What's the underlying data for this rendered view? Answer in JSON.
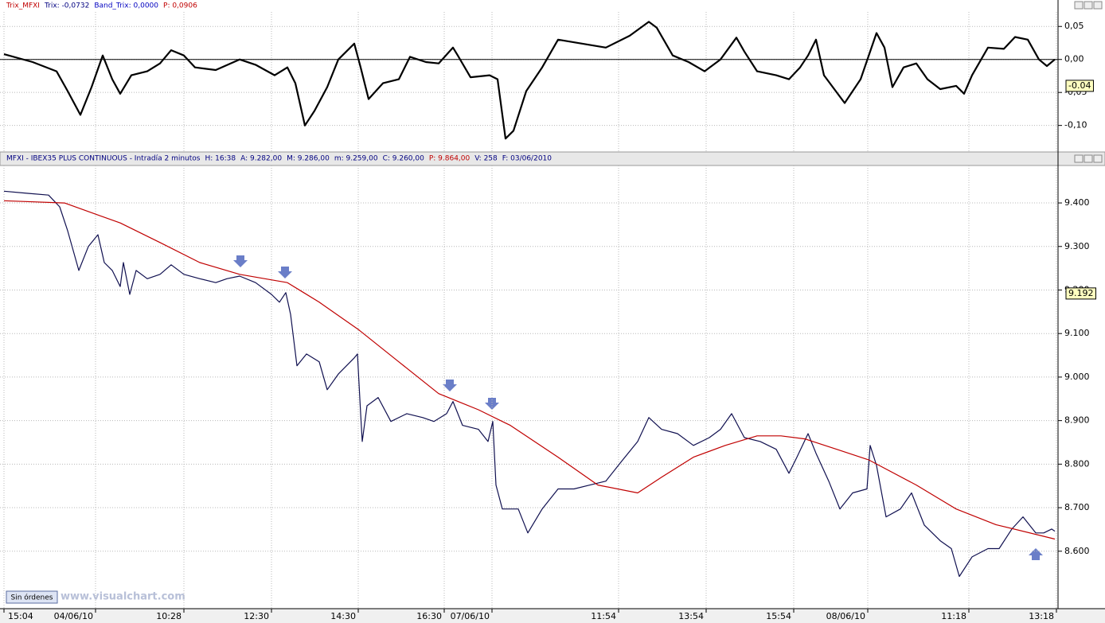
{
  "chart_data": [
    {
      "type": "line",
      "title": "Trix_MFXI",
      "fields": [
        {
          "text": "Trix: -0,0732",
          "color": "#000080"
        },
        {
          "text": "Band_Trix: 0,0000",
          "color": "#0000c0"
        },
        {
          "text": "P: 0,0906",
          "color": "#c00000"
        }
      ],
      "ylim": [
        -0.139,
        0.072
      ],
      "yticks": [
        {
          "value": 0.05,
          "label": "0,05"
        },
        {
          "value": 0,
          "label": "0,00"
        },
        {
          "value": -0.05,
          "label": "-0,05"
        },
        {
          "value": -0.1,
          "label": "-0,10"
        }
      ],
      "baseline": 0,
      "last_value": -0.04,
      "series": [
        {
          "color": "#000000",
          "x": [
            0,
            18,
            33,
            40,
            48,
            55,
            62,
            68,
            73,
            80,
            90,
            98,
            105,
            113,
            120,
            133,
            148,
            158,
            170,
            178,
            183,
            189,
            195,
            203,
            210,
            220,
            224,
            229,
            238,
            248,
            255,
            265,
            273,
            282,
            285,
            293,
            305,
            310,
            315,
            320,
            328,
            338,
            348,
            363,
            378,
            393,
            405,
            410,
            420,
            430,
            440,
            450,
            460,
            465,
            473,
            485,
            493,
            500,
            505,
            510,
            515,
            528,
            538,
            548,
            553,
            558,
            565,
            573,
            580,
            588,
            598,
            603,
            608,
            618,
            628,
            635,
            643,
            650,
            655,
            660
          ],
          "values": [
            0.008,
            -0.004,
            -0.018,
            -0.048,
            -0.084,
            -0.042,
            0.006,
            -0.03,
            -0.052,
            -0.024,
            -0.018,
            -0.006,
            0.014,
            0.006,
            -0.012,
            -0.016,
            0,
            -0.008,
            -0.024,
            -0.012,
            -0.036,
            -0.1,
            -0.078,
            -0.042,
            0,
            0.024,
            -0.012,
            -0.06,
            -0.036,
            -0.03,
            0.004,
            -0.004,
            -0.006,
            0.018,
            0.006,
            -0.027,
            -0.024,
            -0.03,
            -0.12,
            -0.108,
            -0.048,
            -0.012,
            0.03,
            0.024,
            0.018,
            0.036,
            0.057,
            0.048,
            0.006,
            -0.004,
            -0.018,
            0,
            0.033,
            0.012,
            -0.018,
            -0.024,
            -0.03,
            -0.012,
            0.006,
            0.03,
            -0.024,
            -0.066,
            -0.03,
            0.04,
            0.018,
            -0.042,
            -0.012,
            -0.006,
            -0.03,
            -0.045,
            -0.04,
            -0.052,
            -0.024,
            0.018,
            0.016,
            0.034,
            0.03,
            0,
            -0.01,
            0
          ]
        }
      ]
    },
    {
      "type": "line",
      "title": "MFXI - IBEX35 PLUS CONTINUOUS - Intradía 2 minutos",
      "fields": [
        {
          "text": "H: 16:38",
          "color": "#000080"
        },
        {
          "text": "A: 9.282,00",
          "color": "#000080"
        },
        {
          "text": "M: 9.286,00",
          "color": "#000080"
        },
        {
          "text": "m: 9.259,00",
          "color": "#000080"
        },
        {
          "text": "C: 9.260,00",
          "color": "#000080"
        },
        {
          "text": "P: 9.864,00",
          "color": "#c00000"
        },
        {
          "text": "V: 258",
          "color": "#000080"
        },
        {
          "text": "F: 03/06/2010",
          "color": "#000080"
        }
      ],
      "xlim": [
        0,
        660
      ],
      "xticks": [
        {
          "value": 0,
          "label": "15:04"
        },
        {
          "value": 57.5,
          "label": "04/06/10"
        },
        {
          "value": 113,
          "label": "10:28"
        },
        {
          "value": 168,
          "label": "12:30"
        },
        {
          "value": 222.5,
          "label": "14:30"
        },
        {
          "value": 276.5,
          "label": "16:30"
        },
        {
          "value": 306.5,
          "label": "07/06/10"
        },
        {
          "value": 386,
          "label": "11:54"
        },
        {
          "value": 441,
          "label": "13:54"
        },
        {
          "value": 496,
          "label": "15:54"
        },
        {
          "value": 542.5,
          "label": "08/06/10"
        },
        {
          "value": 606,
          "label": "11:18"
        },
        {
          "value": 661,
          "label": "13:18"
        }
      ],
      "ylim": [
        8.468,
        9.486
      ],
      "yticks": [
        {
          "value": 9.4,
          "label": "9.400"
        },
        {
          "value": 9.3,
          "label": "9.300"
        },
        {
          "value": 9.2,
          "label": "9.200"
        },
        {
          "value": 9.1,
          "label": "9.100"
        },
        {
          "value": 9.0,
          "label": "9.000"
        },
        {
          "value": 8.9,
          "label": "8.900"
        },
        {
          "value": 8.8,
          "label": "8.800"
        },
        {
          "value": 8.7,
          "label": "8.700"
        },
        {
          "value": 8.6,
          "label": "8.600"
        }
      ],
      "last_value": 9.192,
      "series": [
        {
          "color": "#101050",
          "x": [
            0,
            15,
            28,
            35,
            40,
            47,
            53,
            59,
            63,
            68,
            73,
            75,
            79,
            83,
            90,
            98,
            105,
            113,
            123,
            133,
            140,
            148,
            158,
            168,
            173,
            177,
            180,
            184,
            190,
            198,
            203,
            210,
            220,
            222,
            224,
            225,
            228,
            235,
            243,
            253,
            263,
            270,
            278,
            282,
            288,
            298,
            304,
            307,
            309,
            313,
            323,
            329,
            338,
            348,
            358,
            368,
            378,
            388,
            398,
            405,
            413,
            423,
            433,
            443,
            450,
            457,
            465,
            475,
            485,
            493,
            498,
            505,
            510,
            518,
            525,
            533,
            542,
            544,
            548,
            554,
            563,
            570,
            578,
            588,
            595,
            600,
            608,
            618,
            625,
            633,
            640,
            648,
            653,
            658,
            660
          ],
          "values": [
            9.427,
            9.422,
            9.418,
            9.391,
            9.336,
            9.245,
            9.3,
            9.327,
            9.263,
            9.245,
            9.208,
            9.263,
            9.19,
            9.245,
            9.226,
            9.236,
            9.258,
            9.236,
            9.226,
            9.217,
            9.226,
            9.232,
            9.217,
            9.19,
            9.172,
            9.194,
            9.144,
            9.026,
            9.053,
            9.035,
            8.971,
            9.007,
            9.044,
            9.053,
            8.916,
            8.852,
            8.934,
            8.953,
            8.898,
            8.916,
            8.907,
            8.898,
            8.916,
            8.944,
            8.889,
            8.88,
            8.852,
            8.898,
            8.752,
            8.697,
            8.697,
            8.642,
            8.697,
            8.743,
            8.743,
            8.752,
            8.761,
            8.807,
            8.852,
            8.907,
            8.88,
            8.87,
            8.843,
            8.861,
            8.88,
            8.916,
            8.861,
            8.852,
            8.834,
            8.779,
            8.816,
            8.87,
            8.825,
            8.761,
            8.697,
            8.734,
            8.743,
            8.843,
            8.797,
            8.679,
            8.697,
            8.734,
            8.66,
            8.624,
            8.606,
            8.542,
            8.587,
            8.606,
            8.606,
            8.651,
            8.679,
            8.642,
            8.642,
            8.651,
            8.646
          ]
        },
        {
          "color": "#c00000",
          "x": [
            0,
            38,
            73,
            98,
            123,
            148,
            178,
            198,
            223,
            248,
            273,
            298,
            318,
            348,
            373,
            398,
            413,
            433,
            453,
            473,
            488,
            503,
            523,
            543,
            573,
            598,
            623,
            660
          ],
          "values": [
            9.405,
            9.4,
            9.354,
            9.309,
            9.263,
            9.236,
            9.217,
            9.172,
            9.108,
            9.035,
            8.962,
            8.925,
            8.889,
            8.816,
            8.752,
            8.734,
            8.77,
            8.816,
            8.843,
            8.865,
            8.865,
            8.858,
            8.834,
            8.81,
            8.752,
            8.697,
            8.661,
            8.628
          ]
        }
      ]
    }
  ],
  "status": "Sin órdenes",
  "watermark": "www.visualchart.com"
}
